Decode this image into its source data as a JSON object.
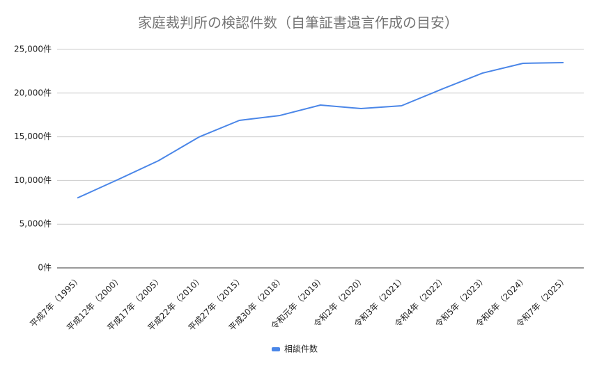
{
  "chart_data": {
    "type": "line",
    "title": "家庭裁判所の検認件数（自筆証書遺言作成の目安）",
    "categories": [
      "平成7年（1995）",
      "平成12年（2000）",
      "平成17年（2005）",
      "平成22年（2010）",
      "平成27年（2015）",
      "平成30年（2018）",
      "令和元年（2019）",
      "令和2年（2020）",
      "令和3年（2021）",
      "令和4年（2022）",
      "令和5年（2023）",
      "令和6年（2024）",
      "令和7年（2025）"
    ],
    "series": [
      {
        "name": "相談件数",
        "color": "#4a86e8",
        "values": [
          8000,
          10100,
          12260,
          14970,
          16880,
          17440,
          18630,
          18230,
          18550,
          20460,
          22290,
          23410,
          23490
        ]
      }
    ],
    "ylim": [
      0,
      25000
    ],
    "yticks": [
      {
        "value": 0,
        "label": "0件"
      },
      {
        "value": 5000,
        "label": "5,000件"
      },
      {
        "value": 10000,
        "label": "10,000件"
      },
      {
        "value": 15000,
        "label": "15,000件"
      },
      {
        "value": 20000,
        "label": "20,000件"
      },
      {
        "value": 25000,
        "label": "25,000件"
      }
    ],
    "grid": true,
    "legend": "bottom"
  }
}
